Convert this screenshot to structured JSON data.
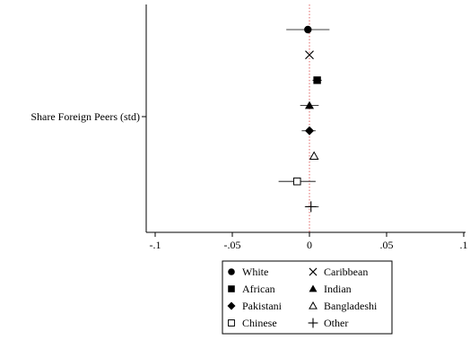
{
  "chart_data": {
    "type": "scatter",
    "subtype": "coefficient-plot-horizontal",
    "title": "",
    "xlabel": "",
    "ylabel": "",
    "y_category": "Share Foreign Peers (std)",
    "xlim": [
      -0.1,
      0.1
    ],
    "xticks": [
      -0.1,
      -0.05,
      0,
      0.05,
      0.1
    ],
    "xtick_labels": [
      "-.1",
      "-.05",
      "0",
      ".05",
      ".1"
    ],
    "reference_line": {
      "x": 0,
      "color": "#e06666",
      "style": "dotted"
    },
    "grid": false,
    "legend_placement": "bottom",
    "series": [
      {
        "name": "White",
        "marker": "circle-filled",
        "estimate": -0.001,
        "ci": [
          -0.015,
          0.013
        ]
      },
      {
        "name": "Caribbean",
        "marker": "x",
        "estimate": 0.0,
        "ci": [
          0.0,
          0.0
        ]
      },
      {
        "name": "African",
        "marker": "square-filled",
        "estimate": 0.005,
        "ci": [
          0.002,
          0.008
        ]
      },
      {
        "name": "Indian",
        "marker": "triangle-filled",
        "estimate": 0.0,
        "ci": [
          -0.006,
          0.006
        ]
      },
      {
        "name": "Pakistani",
        "marker": "diamond-filled",
        "estimate": 0.0,
        "ci": [
          -0.005,
          0.004
        ]
      },
      {
        "name": "Bangladeshi",
        "marker": "triangle-hollow",
        "estimate": 0.003,
        "ci": [
          0.001,
          0.004
        ]
      },
      {
        "name": "Chinese",
        "marker": "square-hollow",
        "estimate": -0.008,
        "ci": [
          -0.02,
          0.004
        ]
      },
      {
        "name": "Other",
        "marker": "plus",
        "estimate": 0.001,
        "ci": [
          -0.003,
          0.006
        ]
      }
    ]
  }
}
